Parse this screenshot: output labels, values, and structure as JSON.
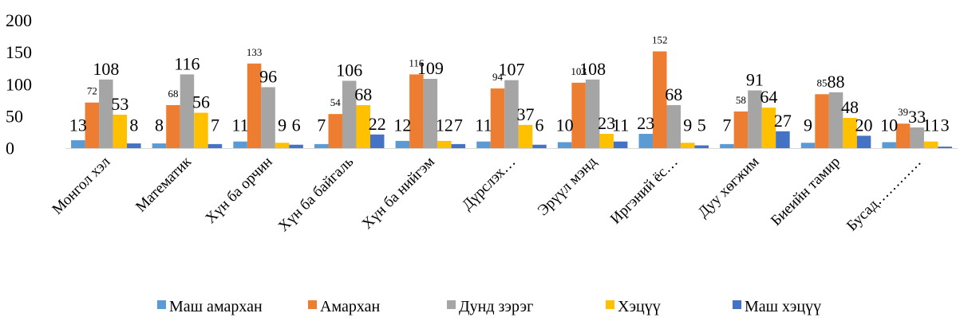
{
  "chart_data": {
    "type": "bar",
    "categories": [
      "Монгол хэл",
      "Математик",
      "Хүн ба орчин",
      "Хүн ба байгаль",
      "Хүн ба нийгэм",
      "Дүрслэх…",
      "Эрүүл мэнд",
      "Иргэний ёс…",
      "Дуу хөгжим",
      "Биеийн тамир",
      "Бусад…………"
    ],
    "series": [
      {
        "name": "Маш амархан",
        "color": "#5B9BD5",
        "values": [
          13,
          8,
          11,
          7,
          12,
          11,
          10,
          23,
          7,
          9,
          10
        ]
      },
      {
        "name": "Амархан",
        "color": "#ED7D31",
        "values": [
          72,
          68,
          133,
          54,
          116,
          94,
          103,
          152,
          58,
          85,
          39
        ]
      },
      {
        "name": "Дунд зэрэг",
        "color": "#A5A5A5",
        "values": [
          108,
          116,
          96,
          106,
          109,
          107,
          108,
          68,
          91,
          88,
          33
        ]
      },
      {
        "name": "Хэцүү",
        "color": "#FFC000",
        "values": [
          53,
          56,
          9,
          68,
          12,
          37,
          23,
          9,
          64,
          48,
          11
        ]
      },
      {
        "name": "Маш хэцүү",
        "color": "#4472C4",
        "values": [
          8,
          7,
          6,
          22,
          7,
          6,
          11,
          5,
          27,
          20,
          3
        ]
      }
    ],
    "yticks": [
      "0",
      "50",
      "100",
      "150",
      "200"
    ],
    "ylim": [
      0,
      200
    ],
    "grid": false,
    "legend_position": "bottom",
    "data_labels": true
  }
}
